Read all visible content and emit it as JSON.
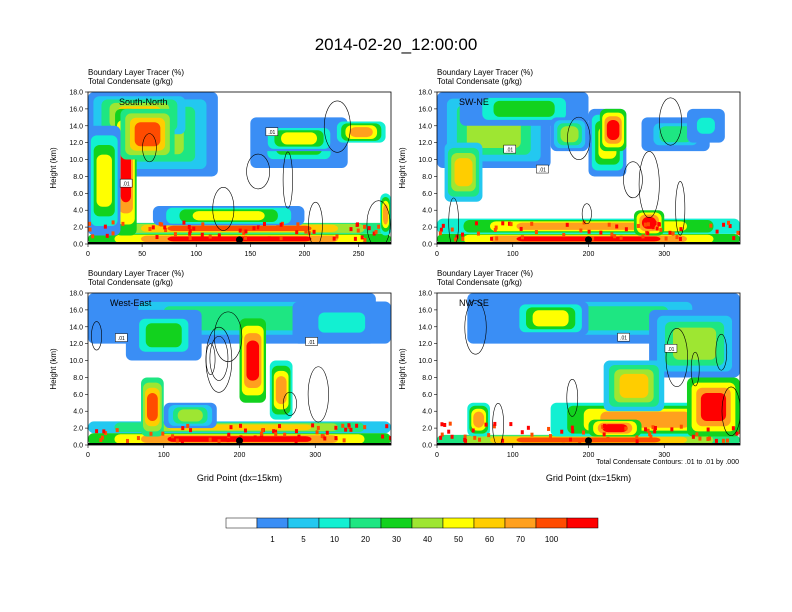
{
  "title": "2014-02-20_12:00:00",
  "colors": {
    "bins": [
      "#ffffff",
      "#3a8ef5",
      "#23c8f0",
      "#12f0d2",
      "#1ee682",
      "#12d21e",
      "#9ee632",
      "#ffff00",
      "#ffcd00",
      "#ffa01e",
      "#ff4b00",
      "#ff0000"
    ],
    "ground": "#000000",
    "marker": "#000000"
  },
  "chart_data": {
    "type": "heatmap",
    "variable": "Boundary Layer Tracer (%) shaded, Total Condensate (g/kg) contoured",
    "legend": {
      "position": "bottom-center",
      "levels": [
        "1",
        "5",
        "10",
        "20",
        "30",
        "40",
        "50",
        "60",
        "70",
        "100"
      ]
    },
    "contour_note": "Total Condensate Contours: .01 to .01 by .000",
    "contour_label": ".01",
    "ylim": [
      0,
      18
    ],
    "yticks": [
      "0.0",
      "2.0",
      "4.0",
      "6.0",
      "8.0",
      "10.0",
      "12.0",
      "14.0",
      "16.0",
      "18.0"
    ],
    "ylabel": "Height (km)",
    "panels": [
      {
        "subtitle1": "Boundary Layer Tracer   (%)",
        "subtitle2": "Total Condensate   (g/kg)",
        "label": "South-North",
        "xlim": [
          0,
          280
        ],
        "xticks": [
          "0",
          "50",
          "100",
          "150",
          "200",
          "250"
        ],
        "xlabel": "",
        "marker_x": 140
      },
      {
        "subtitle1": "Boundary Layer Tracer   (%)",
        "subtitle2": "Total Condensate   (g/kg)",
        "label": "SW-NE",
        "xlim": [
          0,
          400
        ],
        "xticks": [
          "0",
          "100",
          "200",
          "300"
        ],
        "xlabel": "",
        "marker_x": 200
      },
      {
        "subtitle1": "Boundary Layer Tracer   (%)",
        "subtitle2": "Total Condensate   (g/kg)",
        "label": "West-East",
        "xlim": [
          0,
          400
        ],
        "xticks": [
          "0",
          "100",
          "200",
          "300"
        ],
        "xlabel": "Grid Point (dx=15km)",
        "marker_x": 200
      },
      {
        "subtitle1": "Boundary Layer Tracer   (%)",
        "subtitle2": "Total Condensate   (g/kg)",
        "label": "NW-SE",
        "xlim": [
          0,
          400
        ],
        "xticks": [
          "0",
          "100",
          "200",
          "300"
        ],
        "xlabel": "Grid Point (dx=15km)",
        "marker_x": 200
      }
    ]
  }
}
